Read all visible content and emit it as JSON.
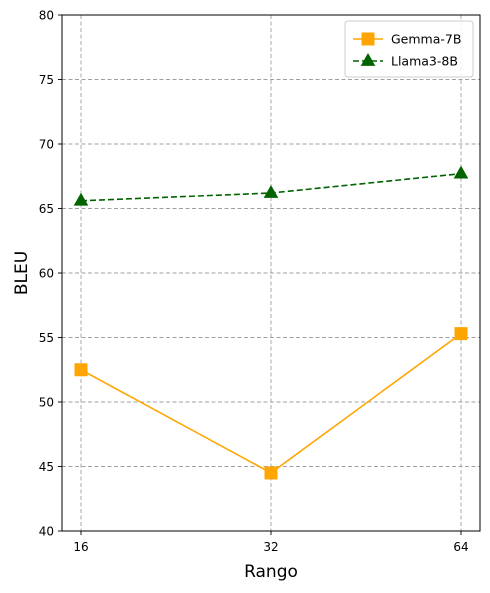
{
  "chart_data": {
    "type": "line",
    "title": "",
    "xlabel": "Rango",
    "ylabel": "BLEU",
    "x": [
      16,
      32,
      64
    ],
    "x_tick_labels": [
      "16",
      "32",
      "64"
    ],
    "ylim": [
      40,
      80
    ],
    "y_ticks": [
      40,
      45,
      50,
      55,
      60,
      65,
      70,
      75,
      80
    ],
    "grid": true,
    "legend_position": "top-right",
    "series": [
      {
        "name": "Gemma-7B",
        "values": [
          52.5,
          44.5,
          55.3
        ],
        "color": "#FFA500",
        "line_style": "solid",
        "marker": "square"
      },
      {
        "name": "Llama3-8B",
        "values": [
          65.6,
          66.2,
          67.7
        ],
        "color": "#006400",
        "line_style": "dashed",
        "marker": "triangle"
      }
    ]
  }
}
